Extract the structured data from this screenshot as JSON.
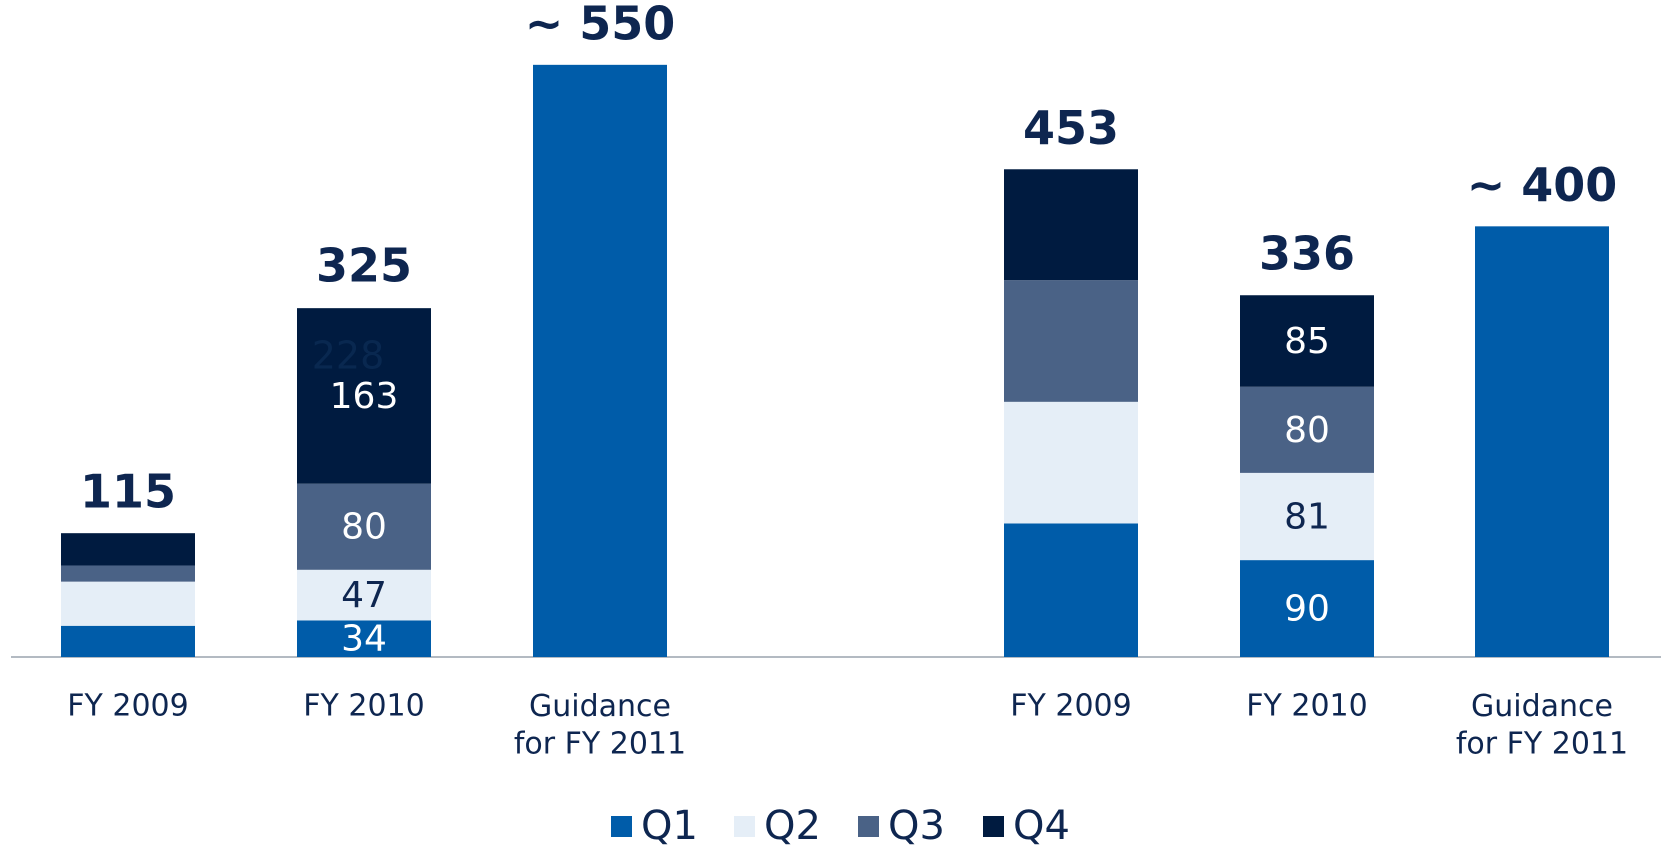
{
  "chart_data": {
    "type": "stacked_bar",
    "categories": [
      "FY 2009",
      "FY 2010",
      "Guidance\nfor FY 2011",
      "FY 2009",
      "FY 2010",
      "Guidance\nfor FY 2011"
    ],
    "series": [
      {
        "name": "Q1",
        "color": "#005ca9",
        "values": [
          29,
          34,
          550,
          124,
          90,
          400
        ],
        "value_labels": [
          null,
          "34",
          null,
          null,
          "90",
          null
        ]
      },
      {
        "name": "Q2",
        "color": "#e5eef7",
        "values": [
          41,
          47,
          null,
          113,
          81,
          null
        ],
        "value_labels": [
          null,
          "47",
          null,
          null,
          "81",
          null
        ]
      },
      {
        "name": "Q3",
        "color": "#4a6286",
        "values": [
          15,
          80,
          null,
          113,
          80,
          null
        ],
        "value_labels": [
          null,
          "80",
          null,
          null,
          "80",
          null
        ]
      },
      {
        "name": "Q4",
        "color": "#001b40",
        "values": [
          30,
          163,
          null,
          103,
          85,
          null
        ],
        "value_labels": [
          null,
          "163",
          null,
          null,
          "85",
          null
        ]
      }
    ],
    "totals": [
      115,
      325,
      550,
      453,
      336,
      400
    ],
    "total_labels": [
      "115",
      "325",
      "~ 550",
      "453",
      "336",
      "~ 400"
    ],
    "annotations": [
      "228"
    ],
    "ylim": [
      0,
      600
    ],
    "legend": "bottom"
  }
}
